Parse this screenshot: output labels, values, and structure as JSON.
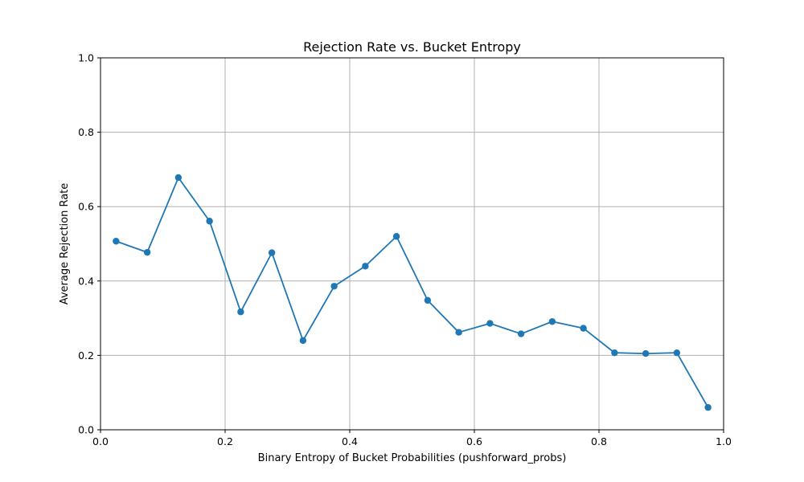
{
  "chart_data": {
    "type": "line",
    "title": "Rejection Rate vs. Bucket Entropy",
    "xlabel": "Binary Entropy of Bucket Probabilities (pushforward_probs)",
    "ylabel": "Average Rejection Rate",
    "xlim": [
      0,
      1
    ],
    "ylim": [
      0,
      1
    ],
    "xticks": [
      "0.0",
      "0.2",
      "0.4",
      "0.6",
      "0.8",
      "1.0"
    ],
    "yticks": [
      "0.0",
      "0.2",
      "0.4",
      "0.6",
      "0.8",
      "1.0"
    ],
    "grid": true,
    "legend": "none",
    "series": [
      {
        "color": "#1f77b4",
        "marker": "circle",
        "x": [
          0.025,
          0.075,
          0.125,
          0.175,
          0.225,
          0.275,
          0.325,
          0.375,
          0.425,
          0.475,
          0.525,
          0.575,
          0.625,
          0.675,
          0.725,
          0.775,
          0.825,
          0.875,
          0.925,
          0.975
        ],
        "y": [
          0.507,
          0.477,
          0.678,
          0.561,
          0.317,
          0.476,
          0.24,
          0.386,
          0.44,
          0.52,
          0.348,
          0.262,
          0.286,
          0.258,
          0.291,
          0.273,
          0.207,
          0.205,
          0.207,
          0.06
        ]
      }
    ]
  }
}
